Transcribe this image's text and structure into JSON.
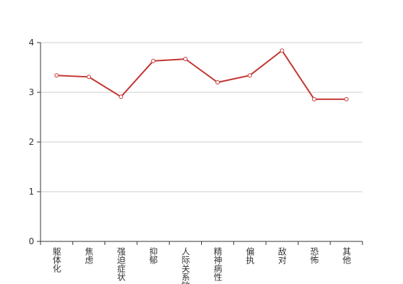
{
  "chart_data": {
    "type": "line",
    "categories": [
      "躯体化",
      "焦虑",
      "强迫症状",
      "抑郁",
      "人际关系敏感",
      "精神病性",
      "偏执",
      "敌对",
      "恐怖",
      "其他"
    ],
    "series": [
      {
        "color": "#c23531",
        "values": [
          3.34,
          3.31,
          2.91,
          3.63,
          3.67,
          3.2,
          3.34,
          3.84,
          2.86,
          2.86
        ]
      }
    ],
    "ylim": [
      0,
      4
    ],
    "yticks": [
      0,
      1,
      2,
      3,
      4
    ],
    "grid": true
  }
}
